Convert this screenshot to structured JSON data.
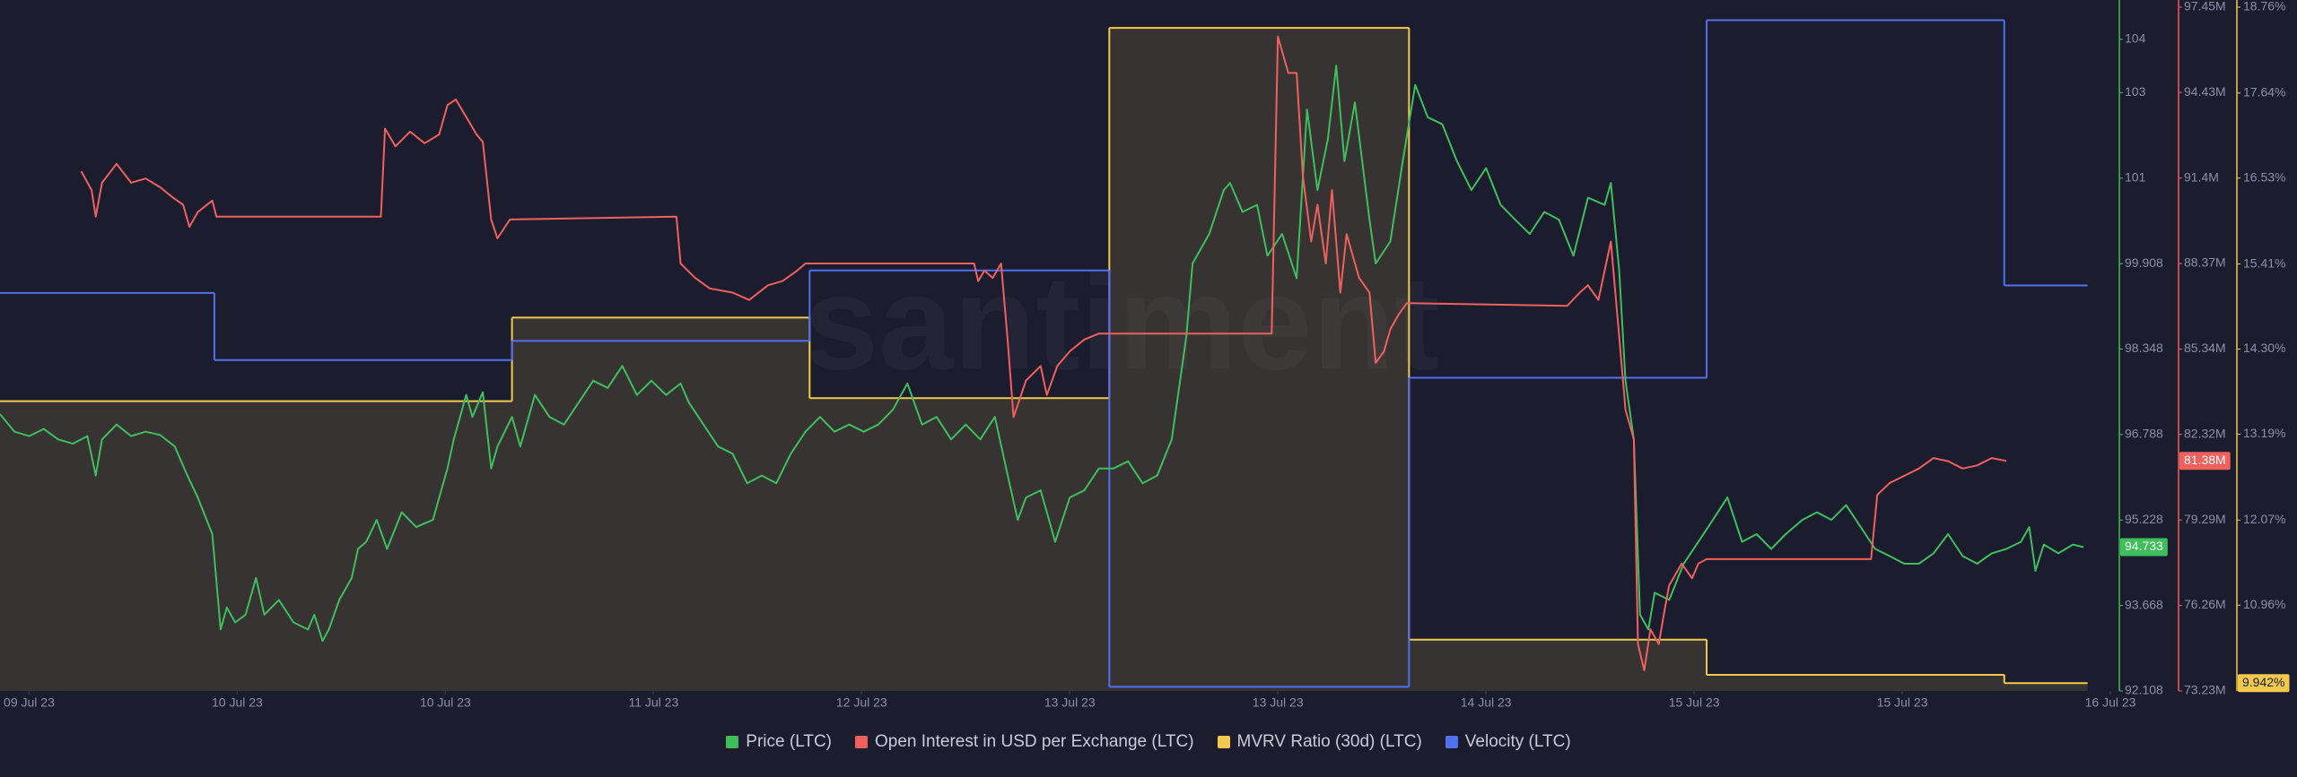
{
  "chart_data": {
    "type": "line",
    "watermark": "santiment",
    "xlim": [
      -0.14,
      10.03
    ],
    "xticks": [
      {
        "value": 0,
        "label": "09 Jul 23"
      },
      {
        "value": 1,
        "label": "10 Jul 23"
      },
      {
        "value": 2,
        "label": "10 Jul 23"
      },
      {
        "value": 3,
        "label": "11 Jul 23"
      },
      {
        "value": 4,
        "label": "12 Jul 23"
      },
      {
        "value": 5,
        "label": "13 Jul 23"
      },
      {
        "value": 6,
        "label": "13 Jul 23"
      },
      {
        "value": 7,
        "label": "14 Jul 23"
      },
      {
        "value": 8,
        "label": "15 Jul 23"
      },
      {
        "value": 9,
        "label": "15 Jul 23"
      },
      {
        "value": 10,
        "label": "16 Jul 23"
      }
    ],
    "ylim": [
      92.108,
      104.588
    ],
    "yticks": [
      92.108,
      93.668,
      95.228,
      96.788,
      98.348,
      99.908,
      {
        "value": 101.468,
        "label": "101"
      },
      {
        "value": 103.028,
        "label": "103"
      },
      {
        "value": 104,
        "label": "104"
      }
    ],
    "y2lim": [
      73.23,
      97.45
    ],
    "y2ticks": [
      {
        "value": 73.23,
        "label": "73.23M"
      },
      {
        "value": 76.26,
        "label": "76.26M"
      },
      {
        "value": 79.29,
        "label": "79.29M"
      },
      {
        "value": 82.32,
        "label": "82.32M"
      },
      {
        "value": 85.34,
        "label": "85.34M"
      },
      {
        "value": 88.37,
        "label": "88.37M"
      },
      {
        "value": 91.4,
        "label": "91.4M"
      },
      {
        "value": 94.43,
        "label": "94.43M"
      },
      {
        "value": 97.45,
        "label": "97.45M"
      }
    ],
    "y3lim": [
      9.84,
      18.76
    ],
    "y3ticks": [
      {
        "value": 10.96,
        "label": "10.96%"
      },
      {
        "value": 12.07,
        "label": "12.07%"
      },
      {
        "value": 13.19,
        "label": "13.19%"
      },
      {
        "value": 14.3,
        "label": "14.30%"
      },
      {
        "value": 15.41,
        "label": "15.41%"
      },
      {
        "value": 16.53,
        "label": "16.53%"
      },
      {
        "value": 17.64,
        "label": "17.64%"
      },
      {
        "value": 18.76,
        "label": "18.76%"
      }
    ],
    "y4lim": [
      0,
      1
    ],
    "series": [
      {
        "name": "MVRV Ratio (30d) (LTC)",
        "color": "#f2c94c",
        "axis": "y3",
        "step": true,
        "area": true,
        "x": [
          -0.14,
          2.32,
          3.75,
          5.19,
          6.63,
          8.06,
          9.49,
          9.89
        ],
        "values": [
          13.62,
          14.71,
          13.66,
          18.49,
          10.51,
          10.05,
          9.942,
          9.942
        ],
        "last_value": {
          "value": 9.942,
          "label": "9.942%"
        }
      },
      {
        "name": "Velocity (LTC)",
        "color": "#5070f0",
        "axis": "y4",
        "step": true,
        "x": [
          -0.14,
          0.89,
          2.32,
          3.75,
          5.19,
          6.63,
          8.06,
          9.49,
          9.89
        ],
        "values": [
          0.582,
          0.484,
          0.512,
          0.615,
          0.006,
          0.458,
          0.981,
          0.593,
          0.593
        ]
      },
      {
        "name": "Price (LTC)",
        "color": "#3fbf5c",
        "axis": "y",
        "x": [
          -0.14,
          -0.07,
          0,
          0.07,
          0.14,
          0.21,
          0.28,
          0.32,
          0.35,
          0.42,
          0.49,
          0.56,
          0.63,
          0.7,
          0.76,
          0.81,
          0.88,
          0.92,
          0.95,
          0.99,
          1.04,
          1.09,
          1.13,
          1.2,
          1.27,
          1.34,
          1.37,
          1.41,
          1.44,
          1.49,
          1.55,
          1.58,
          1.62,
          1.67,
          1.72,
          1.79,
          1.86,
          1.94,
          2.01,
          2.04,
          2.1,
          2.13,
          2.18,
          2.22,
          2.25,
          2.32,
          2.36,
          2.43,
          2.5,
          2.57,
          2.64,
          2.71,
          2.78,
          2.85,
          2.92,
          2.99,
          3.06,
          3.13,
          3.17,
          3.24,
          3.31,
          3.38,
          3.45,
          3.52,
          3.59,
          3.66,
          3.73,
          3.8,
          3.87,
          3.94,
          4.01,
          4.08,
          4.15,
          4.22,
          4.29,
          4.36,
          4.43,
          4.5,
          4.57,
          4.64,
          4.71,
          4.75,
          4.79,
          4.86,
          4.93,
          5.0,
          5.07,
          5.14,
          5.21,
          5.28,
          5.35,
          5.42,
          5.49,
          5.56,
          5.59,
          5.67,
          5.74,
          5.77,
          5.83,
          5.9,
          5.95,
          6.02,
          6.09,
          6.14,
          6.19,
          6.24,
          6.28,
          6.32,
          6.37,
          6.44,
          6.47,
          6.54,
          6.6,
          6.66,
          6.72,
          6.79,
          6.86,
          6.93,
          7.0,
          7.07,
          7.14,
          7.21,
          7.28,
          7.35,
          7.42,
          7.49,
          7.57,
          7.6,
          7.64,
          7.67,
          7.71,
          7.74,
          7.78,
          7.81,
          7.88,
          7.95,
          8.02,
          8.09,
          8.16,
          8.23,
          8.3,
          8.37,
          8.44,
          8.52,
          8.59,
          8.66,
          8.73,
          8.8,
          8.87,
          8.94,
          9.01,
          9.08,
          9.15,
          9.22,
          9.29,
          9.36,
          9.43,
          9.5,
          9.57,
          9.61,
          9.64,
          9.68,
          9.75,
          9.82,
          9.87
        ],
        "values": [
          97.16,
          96.84,
          96.76,
          96.89,
          96.7,
          96.62,
          96.76,
          96.04,
          96.7,
          96.97,
          96.76,
          96.84,
          96.78,
          96.57,
          96.04,
          95.64,
          94.97,
          93.23,
          93.63,
          93.36,
          93.5,
          94.17,
          93.5,
          93.77,
          93.36,
          93.23,
          93.5,
          93.02,
          93.23,
          93.77,
          94.17,
          94.7,
          94.83,
          95.23,
          94.7,
          95.37,
          95.1,
          95.23,
          96.17,
          96.7,
          97.51,
          97.11,
          97.56,
          96.17,
          96.57,
          97.11,
          96.57,
          97.51,
          97.11,
          96.97,
          97.37,
          97.77,
          97.64,
          98.04,
          97.51,
          97.77,
          97.51,
          97.72,
          97.37,
          96.97,
          96.57,
          96.44,
          95.9,
          96.04,
          95.9,
          96.44,
          96.84,
          97.11,
          96.84,
          96.97,
          96.84,
          96.97,
          97.24,
          97.72,
          96.97,
          97.11,
          96.7,
          96.97,
          96.7,
          97.11,
          95.9,
          95.23,
          95.64,
          95.77,
          94.83,
          95.64,
          95.77,
          96.17,
          96.17,
          96.3,
          95.9,
          96.04,
          96.7,
          98.58,
          99.91,
          100.45,
          101.25,
          101.38,
          100.85,
          100.98,
          100.05,
          100.45,
          99.64,
          102.72,
          101.25,
          102.18,
          103.52,
          101.78,
          102.85,
          100.71,
          99.91,
          100.31,
          101.78,
          103.17,
          102.58,
          102.45,
          101.78,
          101.25,
          101.65,
          100.98,
          100.71,
          100.45,
          100.85,
          100.71,
          100.05,
          101.11,
          100.98,
          101.38,
          99.78,
          97.77,
          96.7,
          93.5,
          93.23,
          93.9,
          93.77,
          94.43,
          94.83,
          95.23,
          95.64,
          94.83,
          94.97,
          94.7,
          94.97,
          95.23,
          95.37,
          95.23,
          95.5,
          95.1,
          94.7,
          94.57,
          94.43,
          94.43,
          94.62,
          94.97,
          94.57,
          94.43,
          94.62,
          94.7,
          94.83,
          95.1,
          94.3,
          94.78,
          94.62,
          94.78,
          94.733
        ],
        "last_value": 94.733
      },
      {
        "name": "Open Interest in USD per Exchange (LTC)",
        "color": "#f0605d",
        "axis": "y2",
        "x": [
          0.25,
          0.3,
          0.32,
          0.35,
          0.42,
          0.49,
          0.56,
          0.63,
          0.69,
          0.74,
          0.77,
          0.81,
          0.88,
          0.9,
          1.69,
          1.71,
          1.76,
          1.83,
          1.9,
          1.97,
          2.01,
          2.05,
          2.1,
          2.15,
          2.18,
          2.22,
          2.25,
          2.31,
          3.11,
          3.13,
          3.2,
          3.27,
          3.38,
          3.46,
          3.55,
          3.62,
          3.69,
          3.73,
          4.54,
          4.56,
          4.59,
          4.63,
          4.67,
          4.7,
          4.73,
          4.79,
          4.86,
          4.89,
          4.94,
          5.0,
          5.07,
          5.14,
          5.19,
          5.97,
          6.0,
          6.05,
          6.09,
          6.12,
          6.16,
          6.19,
          6.23,
          6.26,
          6.3,
          6.33,
          6.39,
          6.44,
          6.47,
          6.51,
          6.54,
          6.58,
          6.62,
          7.39,
          7.45,
          7.49,
          7.54,
          7.6,
          7.64,
          7.67,
          7.71,
          7.73,
          7.76,
          7.79,
          7.83,
          7.86,
          7.88,
          7.94,
          7.99,
          8.02,
          8.06,
          8.85,
          8.88,
          8.94,
          9.01,
          9.08,
          9.15,
          9.22,
          9.29,
          9.36,
          9.43,
          9.5
        ],
        "values": [
          91.64,
          90.97,
          90.03,
          91.23,
          91.9,
          91.23,
          91.38,
          91.07,
          90.71,
          90.45,
          89.67,
          90.19,
          90.6,
          90.03,
          90.03,
          93.15,
          92.52,
          93.04,
          92.63,
          92.94,
          93.98,
          94.18,
          93.56,
          92.94,
          92.68,
          89.93,
          89.26,
          89.93,
          90.03,
          88.37,
          87.86,
          87.49,
          87.34,
          87.08,
          87.6,
          87.75,
          88.12,
          88.37,
          88.37,
          87.75,
          88.12,
          87.86,
          88.37,
          85.78,
          82.93,
          84.23,
          84.74,
          83.71,
          84.74,
          85.26,
          85.68,
          85.89,
          85.89,
          85.89,
          96.41,
          95.12,
          95.12,
          91.49,
          89.15,
          90.45,
          88.37,
          90.97,
          87.34,
          89.41,
          87.86,
          87.34,
          84.85,
          85.26,
          86.04,
          86.56,
          86.97,
          86.87,
          87.34,
          87.6,
          87.08,
          89.15,
          85.78,
          83.19,
          82.15,
          74.89,
          73.96,
          75.41,
          74.89,
          76.19,
          76.97,
          77.74,
          77.22,
          77.74,
          77.9,
          77.9,
          80.18,
          80.6,
          80.85,
          81.11,
          81.48,
          81.37,
          81.11,
          81.22,
          81.48,
          81.38
        ],
        "last_value": {
          "value": 81.38,
          "label": "81.38M"
        }
      }
    ]
  }
}
